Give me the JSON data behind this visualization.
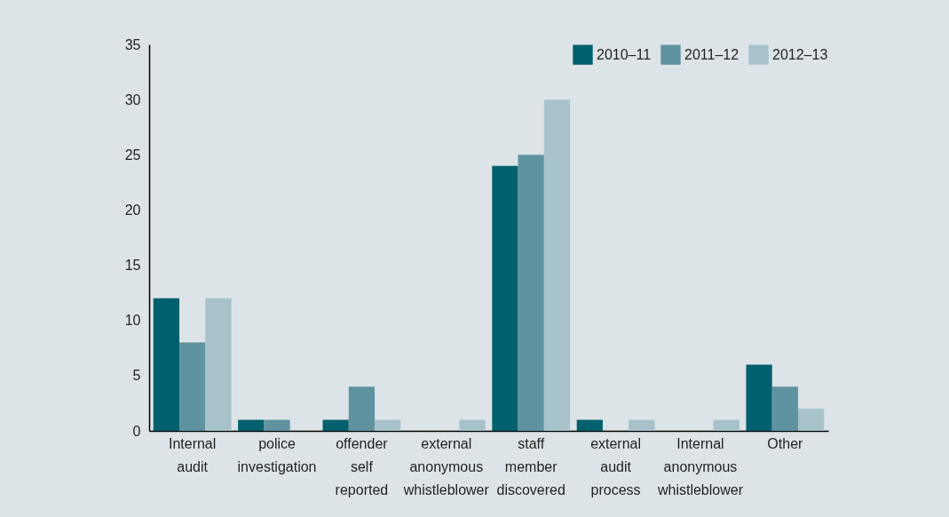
{
  "chart_data": {
    "type": "bar",
    "categories": [
      "Internal audit",
      "police investigation",
      "offender self reported",
      "external anonymous whistleblower",
      "staff member discovered",
      "external audit process",
      "Internal anonymous whistleblower",
      "Other"
    ],
    "series": [
      {
        "name": "2010–11",
        "color": "#00606e",
        "values": [
          12,
          1,
          1,
          0,
          24,
          1,
          0,
          6
        ]
      },
      {
        "name": "2011–12",
        "color": "#5f93a0",
        "values": [
          8,
          1,
          4,
          0,
          25,
          0,
          0,
          4
        ]
      },
      {
        "name": "2012–13",
        "color": "#a7c2cb",
        "values": [
          12,
          0,
          1,
          1,
          30,
          1,
          1,
          2
        ]
      }
    ],
    "ylim": [
      0,
      35
    ],
    "yticks": [
      0,
      5,
      10,
      15,
      20,
      25,
      30,
      35
    ],
    "grid": false,
    "legend": "top right"
  }
}
